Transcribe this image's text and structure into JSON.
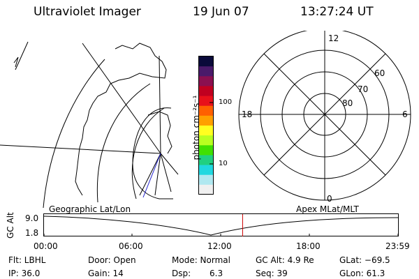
{
  "header": {
    "instrument": "Ultraviolet Imager",
    "date": "19 Jun 07",
    "time": "13:27:24 UT"
  },
  "colorbar": {
    "unit_label": "photon cm⁻²s⁻¹",
    "tick_100": "100",
    "tick_10": "10",
    "colors": [
      "#0a0a3a",
      "#4a1a6a",
      "#8a1050",
      "#c00020",
      "#e8101a",
      "#ff6000",
      "#ffa000",
      "#ffff20",
      "#b8ff20",
      "#40e000",
      "#20d080",
      "#20d8e0",
      "#b0e8f0",
      "#f0f0f0"
    ]
  },
  "polar_plot": {
    "mlt_labels": {
      "top": "12",
      "left": "18",
      "right": "6",
      "bottom": "0"
    },
    "lat_labels": [
      "60",
      "70",
      "80"
    ]
  },
  "timeline": {
    "left_label": "Geographic Lat/Lon",
    "right_label": "Apex MLat/MLT",
    "y_axis_label": "GC Alt",
    "y_max": "9.0",
    "y_min": "1.8",
    "x_ticks": [
      "00:00",
      "06:00",
      "12:00",
      "18:00",
      "23:59"
    ],
    "current_time_fraction": 0.561,
    "marker_color": "#cc0000"
  },
  "status": {
    "flt": "Flt: LBHL",
    "door": "Door: Open",
    "mode": "Mode: Normal",
    "gc_alt": "GC Alt: 4.9 Re",
    "glat": "GLat: −69.5",
    "ip": "IP: 36.0",
    "gain": "Gain: 14",
    "dsp_label": "Dsp:",
    "dsp_value": "6.3",
    "seq": "Seq: 39",
    "glon": "GLon:  61.3"
  }
}
